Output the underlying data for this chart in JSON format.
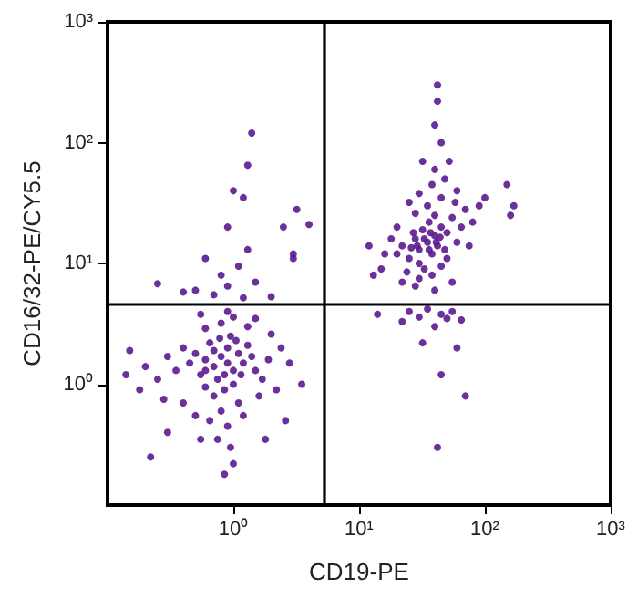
{
  "chart_data": {
    "type": "scatter",
    "xlabel": "CD19-PE",
    "ylabel": "CD16/32-PE/CY5.5",
    "log": "xy",
    "grid": false,
    "marker": "circle",
    "xlim": [
      0.1,
      1000
    ],
    "ylim": [
      0.1,
      1000
    ],
    "xticks": [
      {
        "value": 1,
        "label": "10⁰"
      },
      {
        "value": 10,
        "label": "10¹"
      },
      {
        "value": 100,
        "label": "10²"
      },
      {
        "value": 1000,
        "label": "10³"
      }
    ],
    "yticks": [
      {
        "value": 1,
        "label": "10⁰"
      },
      {
        "value": 10,
        "label": "10¹"
      },
      {
        "value": 100,
        "label": "10²"
      },
      {
        "value": 1000,
        "label": "10³"
      }
    ],
    "ref_lines": [
      {
        "axis": "x",
        "value": 5.3,
        "color": "#000000"
      },
      {
        "axis": "y",
        "value": 4.6,
        "color": "#000000"
      }
    ],
    "series": [
      {
        "color": "#5b1a8f",
        "x": [
          0.9,
          0.8,
          1.0,
          0.7,
          1.1,
          0.6,
          0.9,
          1.2,
          0.75,
          1.0,
          0.85,
          0.65,
          1.3,
          1.5,
          0.55,
          0.5,
          1.4,
          0.95,
          0.7,
          1.1,
          0.8,
          0.6,
          1.7,
          1.9,
          0.45,
          0.4,
          0.35,
          0.3,
          0.25,
          0.2,
          0.18,
          0.28,
          0.4,
          0.5,
          0.65,
          0.9,
          1.2,
          0.75,
          0.95,
          1.0,
          0.85,
          0.55,
          0.3,
          0.22,
          1.6,
          2.2,
          2.4,
          2.0,
          1.3,
          0.8,
          0.6,
          1.0,
          0.55,
          0.9,
          1.5,
          0.15,
          0.14,
          2.8,
          3.5,
          2.6,
          1.8,
          0.7,
          1.05,
          0.85,
          1.15,
          0.6,
          0.78,
          0.7,
          0.9,
          1.2,
          0.5,
          1.5,
          0.8,
          1.1,
          0.6,
          1.3,
          0.9,
          1.2,
          1.0,
          1.3,
          1.4,
          0.4,
          0.25,
          2.0,
          3.0,
          3.2,
          4.0,
          3.0,
          2.5,
          35,
          30,
          40,
          28,
          38,
          32,
          45,
          25,
          42,
          30,
          36,
          50,
          22,
          27,
          33,
          40,
          55,
          48,
          20,
          24,
          30,
          38,
          45,
          60,
          65,
          70,
          58,
          45,
          35,
          28,
          20,
          18,
          16,
          15,
          22,
          28,
          40,
          55,
          50,
          75,
          80,
          90,
          60,
          48,
          38,
          30,
          25,
          40,
          52,
          32,
          45,
          40,
          42,
          42,
          12,
          13,
          100,
          150,
          170,
          160,
          36,
          33,
          29,
          41,
          37,
          26,
          44,
          25,
          30,
          35,
          45,
          50,
          22,
          40,
          55,
          65,
          32,
          60,
          45,
          70,
          42,
          14
        ],
        "values": [
          1.5,
          1.7,
          1.3,
          1.4,
          1.8,
          1.6,
          2.0,
          1.5,
          1.1,
          1.0,
          0.9,
          2.2,
          2.1,
          1.3,
          1.2,
          1.8,
          1.7,
          2.5,
          0.8,
          0.7,
          0.6,
          0.95,
          1.1,
          1.6,
          1.5,
          2.0,
          1.3,
          1.7,
          1.1,
          1.4,
          0.9,
          0.75,
          0.7,
          0.55,
          0.5,
          0.45,
          0.55,
          0.35,
          0.3,
          0.22,
          0.18,
          0.35,
          0.4,
          0.25,
          0.8,
          0.9,
          2.0,
          2.6,
          3.0,
          3.2,
          2.9,
          3.6,
          3.8,
          4.0,
          3.5,
          1.9,
          1.2,
          1.5,
          1.0,
          0.5,
          0.35,
          1.9,
          2.3,
          1.2,
          1.2,
          1.3,
          2.4,
          5.5,
          6.5,
          5.2,
          6.0,
          7.0,
          8.0,
          9.5,
          11,
          13,
          20,
          35,
          40,
          65,
          120,
          5.8,
          6.8,
          5.3,
          12,
          28,
          21,
          11,
          20,
          15,
          13,
          17,
          16,
          12,
          19,
          20,
          11,
          14,
          10,
          22,
          18,
          14,
          18,
          9,
          25,
          24,
          13,
          12,
          8.5,
          7.5,
          8,
          9.5,
          15,
          20,
          28,
          32,
          35,
          30,
          26,
          20,
          16,
          12,
          9,
          7,
          6.5,
          6,
          7,
          11,
          14,
          22,
          30,
          40,
          50,
          45,
          38,
          32,
          60,
          70,
          70,
          100,
          140,
          220,
          300,
          14,
          8,
          35,
          45,
          30,
          25,
          13,
          16,
          14,
          15,
          18,
          13.5,
          16.5,
          4,
          3.6,
          4.2,
          3.8,
          3.5,
          3.3,
          3.0,
          4.0,
          3.4,
          2.2,
          2.0,
          1.2,
          0.8,
          0.3,
          3.8
        ]
      }
    ]
  }
}
